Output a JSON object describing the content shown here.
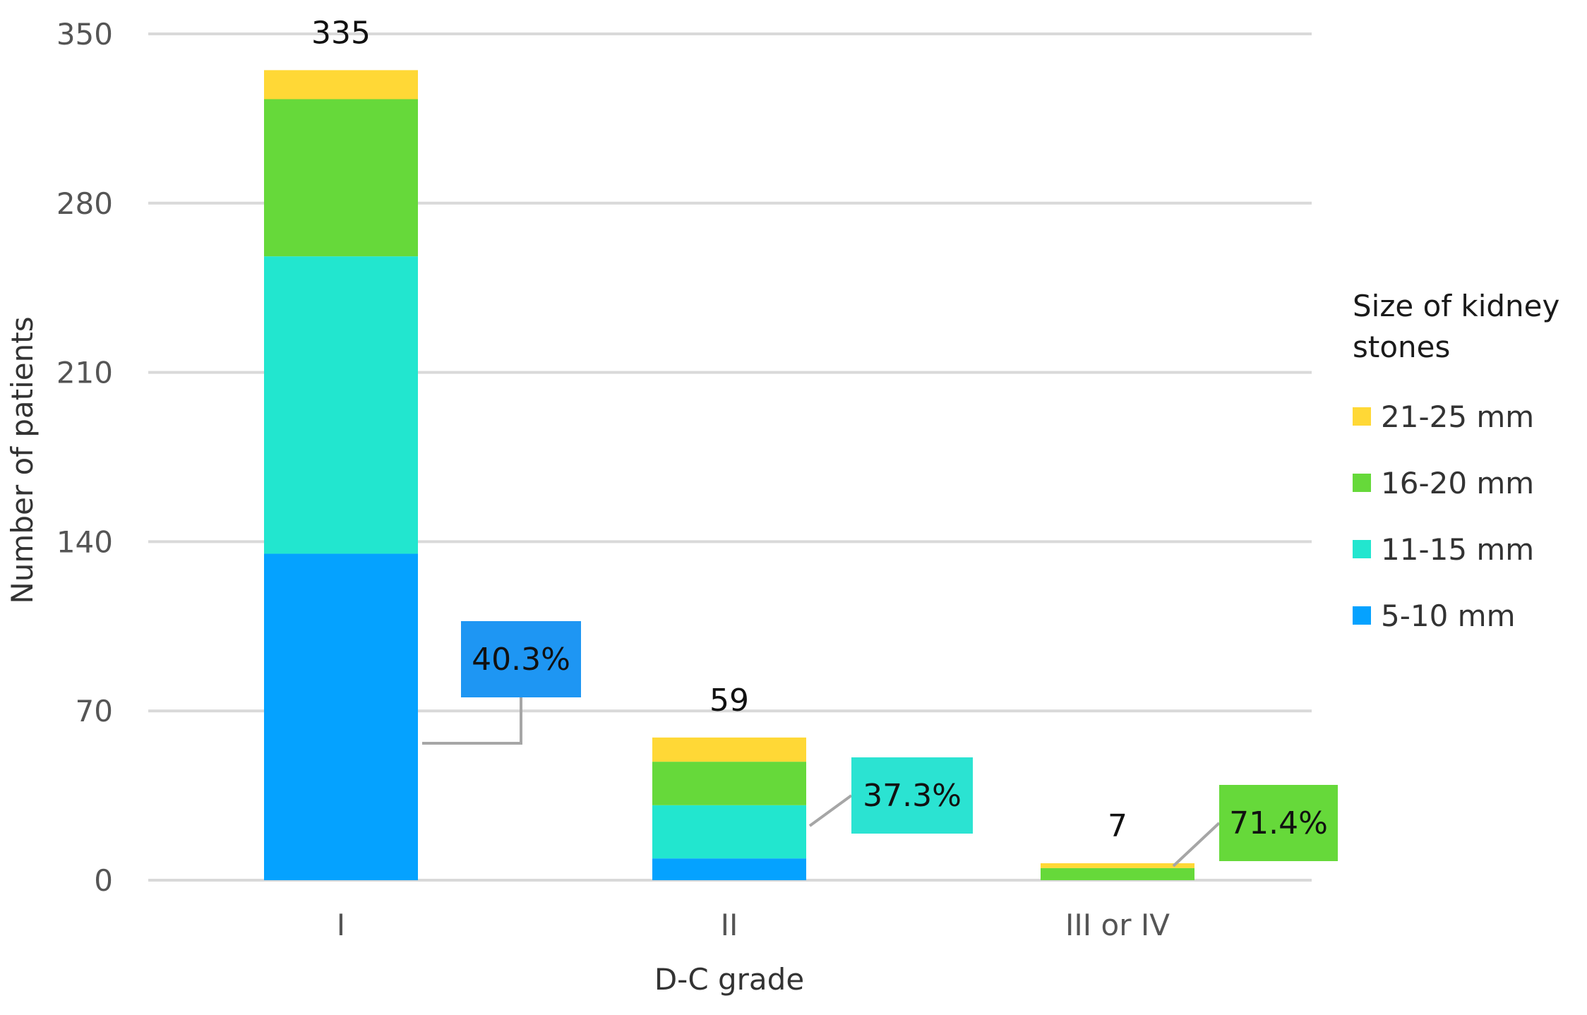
{
  "chart_data": {
    "type": "bar",
    "stacked": true,
    "title": "",
    "xlabel": "D-C grade",
    "ylabel": "Number of patients",
    "ylim": [
      0,
      350
    ],
    "yticks": [
      0,
      70,
      140,
      210,
      280,
      350
    ],
    "categories": [
      "I",
      "II",
      "III or IV"
    ],
    "series": [
      {
        "name": "5-10 mm",
        "color": "#05a2ff",
        "values": [
          135,
          9,
          0
        ]
      },
      {
        "name": "11-15 mm",
        "color": "#22e6cf",
        "values": [
          123,
          22,
          0
        ]
      },
      {
        "name": "16-20 mm",
        "color": "#66d93a",
        "values": [
          65,
          18,
          5
        ]
      },
      {
        "name": "21-25 mm",
        "color": "#ffd836",
        "values": [
          12,
          10,
          2
        ]
      }
    ],
    "totals": [
      "335",
      "59",
      "7"
    ],
    "callouts": [
      {
        "category": "I",
        "series": "5-10 mm",
        "label": "40.3%",
        "color": "#1e96f3"
      },
      {
        "category": "II",
        "series": "11-15 mm",
        "label": "37.3%",
        "color": "#2be3d2"
      },
      {
        "category": "III or IV",
        "series": "16-20 mm",
        "label": "71.4%",
        "color": "#66d93a"
      }
    ],
    "legend": {
      "title": "Size of kidney stones",
      "position": "right",
      "order": [
        "21-25 mm",
        "16-20 mm",
        "11-15 mm",
        "5-10 mm"
      ]
    },
    "grid": true
  }
}
